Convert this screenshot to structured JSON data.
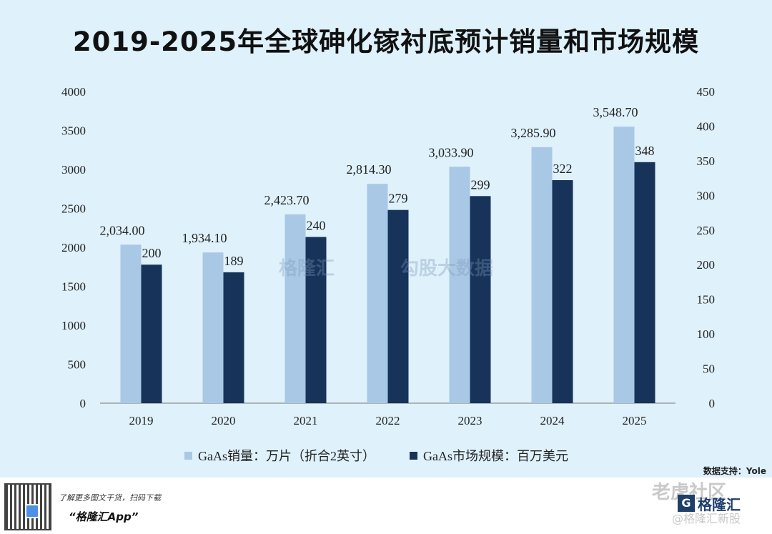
{
  "chart_data": {
    "type": "bar",
    "title": "2019-2025年全球砷化镓衬底预计销量和市场规模",
    "categories": [
      "2019",
      "2020",
      "2021",
      "2022",
      "2023",
      "2024",
      "2025"
    ],
    "series": [
      {
        "name": "GaAs销量：万片（折合2英寸）",
        "axis": "left",
        "color": "#a9c8e6",
        "values": [
          2034.0,
          1934.1,
          2423.7,
          2814.3,
          3033.9,
          3285.9,
          3548.7
        ],
        "labels": [
          "2,034.00",
          "1,934.10",
          "2,423.70",
          "2,814.30",
          "3,033.90",
          "3,285.90",
          "3,548.70"
        ]
      },
      {
        "name": "GaAs市场规模：百万美元",
        "axis": "right",
        "color": "#17335a",
        "values": [
          200,
          189,
          240,
          279,
          299,
          322,
          348
        ],
        "labels": [
          "200",
          "189",
          "240",
          "279",
          "299",
          "322",
          "348"
        ]
      }
    ],
    "y_left": {
      "min": 0,
      "max": 4000,
      "step": 500,
      "ticks": [
        "0",
        "500",
        "1000",
        "1500",
        "2000",
        "2500",
        "3000",
        "3500",
        "4000"
      ]
    },
    "y_right": {
      "min": 0,
      "max": 450,
      "step": 50,
      "ticks": [
        "0",
        "50",
        "100",
        "150",
        "200",
        "250",
        "300",
        "350",
        "400",
        "450"
      ]
    },
    "legend_position": "bottom-center",
    "grid": false
  },
  "source": "数据支持：Yole",
  "footer": {
    "line1": "了解更多图文干货，扫码下载",
    "line2": "“格隆汇App”"
  },
  "watermarks": {
    "center_left": "格隆汇",
    "center_right": "勾股大数据",
    "corner_top": "老虎社区",
    "corner_brand": "格隆汇",
    "corner_bottom": "@格隆汇新股"
  }
}
